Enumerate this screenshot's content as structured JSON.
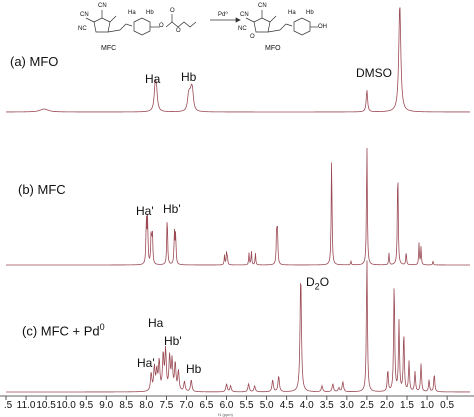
{
  "scheme": {
    "left_label": "MFC",
    "right_label": "MFO",
    "arrow_label": "Pd⁰",
    "left_groups": [
      "CN",
      "NC",
      "CN",
      "Ha",
      "Hb",
      "O",
      "O",
      "O"
    ],
    "right_groups": [
      "CN",
      "NC",
      "CN",
      "Ha",
      "Hb",
      "OH",
      "O"
    ]
  },
  "panels": [
    {
      "label": "(a) MFO",
      "peaks": [
        {
          "label": "Ha"
        },
        {
          "label": "Hb"
        },
        {
          "label": "DMSO"
        }
      ]
    },
    {
      "label": "(b) MFC",
      "peaks": [
        {
          "label": "Ha'"
        },
        {
          "label": "Hb'"
        }
      ]
    },
    {
      "label_prefix": "(c) MFC + Pd",
      "label_sup": "0",
      "peaks": [
        {
          "label": "Ha"
        },
        {
          "label": "Ha'"
        },
        {
          "label": "Hb'"
        },
        {
          "label": "Hb"
        }
      ],
      "water": {
        "main": "D",
        "sub": "2",
        "suffix": "O"
      }
    }
  ],
  "axis": {
    "unit_label": "f1 (ppm)",
    "ticks": [
      ".5",
      "11.0",
      "10.5",
      "10.0",
      "9.5",
      "9.0",
      "8.5",
      "8.0",
      "7.5",
      "7.0",
      "6.5",
      "6.0",
      "5.5",
      "5.0",
      "4.5",
      "4.0",
      "3.5",
      "3.0",
      "2.5",
      "2.0",
      "1.5",
      "1.0",
      "0.5"
    ]
  },
  "colors": {
    "spectrum": "#9b4a55",
    "axis": "#333333"
  }
}
